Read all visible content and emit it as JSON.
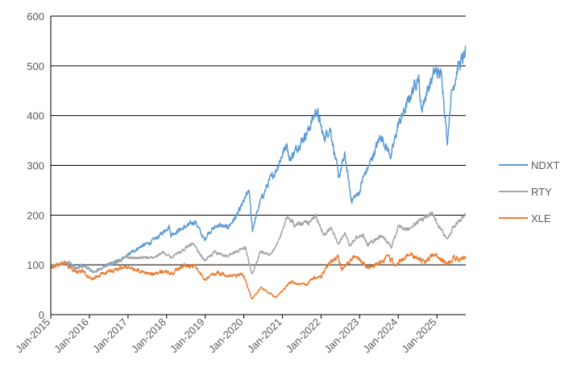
{
  "chart_data": {
    "type": "line",
    "title": "",
    "xlabel": "",
    "ylabel": "",
    "ylim": [
      0,
      600
    ],
    "yticks": [
      0,
      100,
      200,
      300,
      400,
      500,
      600
    ],
    "xticks": [
      "Jan-2015",
      "Jan-2016",
      "Jan-2017",
      "Jan-2018",
      "Jan-2019",
      "Jan-2020",
      "Jan-2021",
      "Jan-2022",
      "Jan-2023",
      "Jan-2024",
      "Jan-2025"
    ],
    "grid": "horizontal",
    "legend_position": "right",
    "series": [
      {
        "name": "NDXT",
        "color": "#5B9BD5",
        "points": [
          [
            "2015-01-01",
            95
          ],
          [
            "2015-03-01",
            100
          ],
          [
            "2015-06-01",
            104
          ],
          [
            "2015-08-25",
            92
          ],
          [
            "2015-11-01",
            100
          ],
          [
            "2016-02-10",
            85
          ],
          [
            "2016-05-01",
            95
          ],
          [
            "2016-08-01",
            105
          ],
          [
            "2016-11-01",
            110
          ],
          [
            "2017-02-01",
            125
          ],
          [
            "2017-05-01",
            137
          ],
          [
            "2017-08-01",
            145
          ],
          [
            "2017-11-01",
            160
          ],
          [
            "2018-01-25",
            178
          ],
          [
            "2018-02-09",
            160
          ],
          [
            "2018-05-01",
            170
          ],
          [
            "2018-08-01",
            180
          ],
          [
            "2018-09-28",
            188
          ],
          [
            "2018-12-24",
            150
          ],
          [
            "2019-02-01",
            165
          ],
          [
            "2019-05-01",
            180
          ],
          [
            "2019-08-01",
            175
          ],
          [
            "2019-11-01",
            200
          ],
          [
            "2020-02-19",
            250
          ],
          [
            "2020-03-23",
            170
          ],
          [
            "2020-06-01",
            225
          ],
          [
            "2020-09-01",
            270
          ],
          [
            "2020-11-01",
            290
          ],
          [
            "2021-02-12",
            345
          ],
          [
            "2021-03-08",
            310
          ],
          [
            "2021-06-01",
            340
          ],
          [
            "2021-09-01",
            370
          ],
          [
            "2021-11-20",
            412
          ],
          [
            "2022-01-27",
            355
          ],
          [
            "2022-03-29",
            375
          ],
          [
            "2022-06-16",
            275
          ],
          [
            "2022-08-15",
            320
          ],
          [
            "2022-10-13",
            230
          ],
          [
            "2022-12-28",
            245
          ],
          [
            "2023-02-02",
            275
          ],
          [
            "2023-04-01",
            300
          ],
          [
            "2023-07-19",
            360
          ],
          [
            "2023-10-26",
            318
          ],
          [
            "2023-12-29",
            380
          ],
          [
            "2024-03-01",
            410
          ],
          [
            "2024-07-10",
            480
          ],
          [
            "2024-08-05",
            410
          ],
          [
            "2024-10-01",
            450
          ],
          [
            "2024-12-16",
            490
          ],
          [
            "2025-02-18",
            480
          ],
          [
            "2025-04-08",
            345
          ],
          [
            "2025-05-15",
            440
          ],
          [
            "2025-07-15",
            495
          ],
          [
            "2025-09-30",
            525
          ]
        ]
      },
      {
        "name": "RTY",
        "color": "#A5A5A5",
        "points": [
          [
            "2015-01-01",
            97
          ],
          [
            "2015-06-23",
            106
          ],
          [
            "2015-08-25",
            93
          ],
          [
            "2015-12-01",
            98
          ],
          [
            "2016-02-11",
            84
          ],
          [
            "2016-06-01",
            98
          ],
          [
            "2016-09-01",
            103
          ],
          [
            "2016-12-09",
            115
          ],
          [
            "2017-04-01",
            114
          ],
          [
            "2017-08-01",
            115
          ],
          [
            "2017-12-01",
            124
          ],
          [
            "2018-02-09",
            115
          ],
          [
            "2018-05-01",
            125
          ],
          [
            "2018-08-31",
            143
          ],
          [
            "2018-12-24",
            109
          ],
          [
            "2019-04-01",
            125
          ],
          [
            "2019-08-01",
            118
          ],
          [
            "2019-12-31",
            133
          ],
          [
            "2020-01-17",
            135
          ],
          [
            "2020-03-18",
            81
          ],
          [
            "2020-06-08",
            125
          ],
          [
            "2020-09-01",
            120
          ],
          [
            "2020-11-30",
            150
          ],
          [
            "2021-02-09",
            196
          ],
          [
            "2021-05-01",
            180
          ],
          [
            "2021-09-01",
            185
          ],
          [
            "2021-11-08",
            198
          ],
          [
            "2022-01-28",
            160
          ],
          [
            "2022-03-29",
            175
          ],
          [
            "2022-06-16",
            140
          ],
          [
            "2022-08-15",
            165
          ],
          [
            "2022-09-30",
            138
          ],
          [
            "2022-12-01",
            155
          ],
          [
            "2023-02-02",
            160
          ],
          [
            "2023-03-17",
            140
          ],
          [
            "2023-07-31",
            160
          ],
          [
            "2023-10-27",
            135
          ],
          [
            "2023-12-29",
            175
          ],
          [
            "2024-04-01",
            170
          ],
          [
            "2024-07-31",
            190
          ],
          [
            "2024-11-25",
            205
          ],
          [
            "2025-01-15",
            180
          ],
          [
            "2025-04-08",
            150
          ],
          [
            "2025-06-01",
            175
          ],
          [
            "2025-09-30",
            205
          ]
        ]
      },
      {
        "name": "XLE",
        "color": "#ED7D31",
        "points": [
          [
            "2015-01-01",
            93
          ],
          [
            "2015-05-01",
            105
          ],
          [
            "2015-08-24",
            85
          ],
          [
            "2015-11-01",
            88
          ],
          [
            "2016-01-20",
            70
          ],
          [
            "2016-06-01",
            85
          ],
          [
            "2016-12-13",
            95
          ],
          [
            "2017-06-01",
            85
          ],
          [
            "2017-08-21",
            80
          ],
          [
            "2017-12-29",
            88
          ],
          [
            "2018-02-09",
            80
          ],
          [
            "2018-05-22",
            97
          ],
          [
            "2018-10-03",
            98
          ],
          [
            "2018-12-24",
            70
          ],
          [
            "2019-04-23",
            85
          ],
          [
            "2019-08-01",
            78
          ],
          [
            "2019-12-31",
            80
          ],
          [
            "2020-03-18",
            30
          ],
          [
            "2020-06-08",
            55
          ],
          [
            "2020-10-28",
            35
          ],
          [
            "2020-12-31",
            47
          ],
          [
            "2021-03-15",
            65
          ],
          [
            "2021-08-19",
            60
          ],
          [
            "2021-10-26",
            75
          ],
          [
            "2021-12-31",
            75
          ],
          [
            "2022-03-08",
            100
          ],
          [
            "2022-06-08",
            118
          ],
          [
            "2022-07-14",
            90
          ],
          [
            "2022-11-07",
            115
          ],
          [
            "2022-12-31",
            110
          ],
          [
            "2023-03-17",
            95
          ],
          [
            "2023-06-01",
            100
          ],
          [
            "2023-09-27",
            115
          ],
          [
            "2023-12-13",
            100
          ],
          [
            "2024-04-05",
            122
          ],
          [
            "2024-09-10",
            105
          ],
          [
            "2024-11-22",
            120
          ],
          [
            "2025-01-15",
            117
          ],
          [
            "2025-04-08",
            100
          ],
          [
            "2025-06-20",
            115
          ],
          [
            "2025-09-30",
            112
          ]
        ]
      }
    ]
  }
}
